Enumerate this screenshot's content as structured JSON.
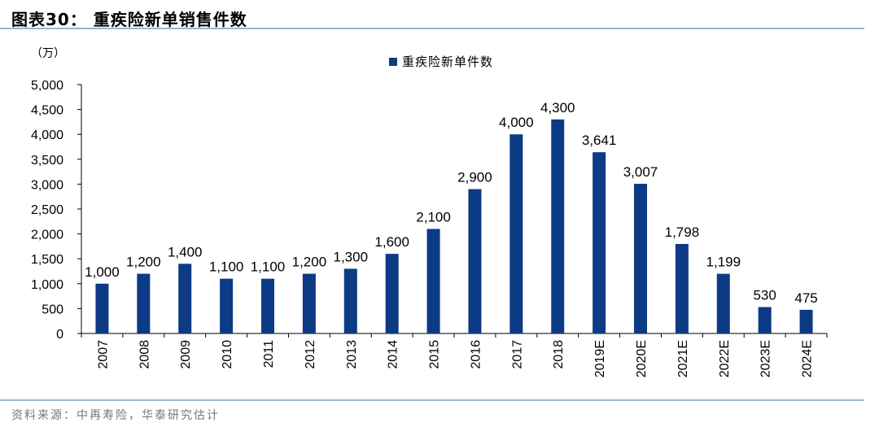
{
  "header": {
    "title": "图表30：  重疾险新单销售件数"
  },
  "footer": {
    "source": "资料来源：中再寿险，华泰研究估计"
  },
  "colors": {
    "bar": "#0d3a84",
    "rule": "#9db3d6"
  },
  "chart_data": {
    "type": "bar",
    "unit_label": "（万）",
    "categories": [
      "2007",
      "2008",
      "2009",
      "2010",
      "2011",
      "2012",
      "2013",
      "2014",
      "2015",
      "2016",
      "2017",
      "2018",
      "2019E",
      "2020E",
      "2021E",
      "2022E",
      "2023E",
      "2024E"
    ],
    "series": [
      {
        "name": "重疾险新单件数",
        "values": [
          1000,
          1200,
          1400,
          1100,
          1100,
          1200,
          1300,
          1600,
          2100,
          2900,
          4000,
          4300,
          3641,
          3007,
          1798,
          1199,
          530,
          475
        ]
      }
    ],
    "data_labels": [
      "1,000",
      "1,200",
      "1,400",
      "1,100",
      "1,100",
      "1,200",
      "1,300",
      "1,600",
      "2,100",
      "2,900",
      "4,000",
      "4,300",
      "3,641",
      "3,007",
      "1,798",
      "1,199",
      "530",
      "475"
    ],
    "ylim": [
      0,
      5000
    ],
    "yticks": [
      0,
      500,
      1000,
      1500,
      2000,
      2500,
      3000,
      3500,
      4000,
      4500,
      5000
    ],
    "ytick_labels": [
      "0",
      "500",
      "1,000",
      "1,500",
      "2,000",
      "2,500",
      "3,000",
      "3,500",
      "4,000",
      "4,500",
      "5,000"
    ],
    "legend_position": "top-center",
    "grid": false
  }
}
